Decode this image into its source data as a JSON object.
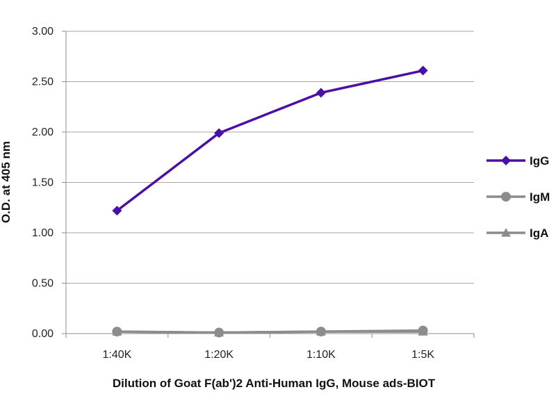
{
  "chart_data": {
    "type": "line",
    "xlabel": "Dilution of Goat F(ab')2 Anti-Human IgG, Mouse ads-BIOT",
    "ylabel": "O.D. at 405 nm",
    "categories": [
      "1:40K",
      "1:20K",
      "1:10K",
      "1:5K"
    ],
    "ylim": [
      0,
      3
    ],
    "yticks": [
      "0.00",
      "0.50",
      "1.00",
      "1.50",
      "2.00",
      "2.50",
      "3.00"
    ],
    "grid": true,
    "legend_position": "right",
    "series": [
      {
        "name": "IgG",
        "values": [
          1.22,
          1.99,
          2.39,
          2.61
        ],
        "color": "#4B0FA8",
        "marker": "diamond"
      },
      {
        "name": "IgM",
        "values": [
          0.02,
          0.01,
          0.02,
          0.03
        ],
        "color": "#8C8C8C",
        "marker": "circle"
      },
      {
        "name": "IgA",
        "values": [
          0.02,
          0.01,
          0.02,
          0.02
        ],
        "color": "#8C8C8C",
        "marker": "triangle"
      }
    ]
  }
}
